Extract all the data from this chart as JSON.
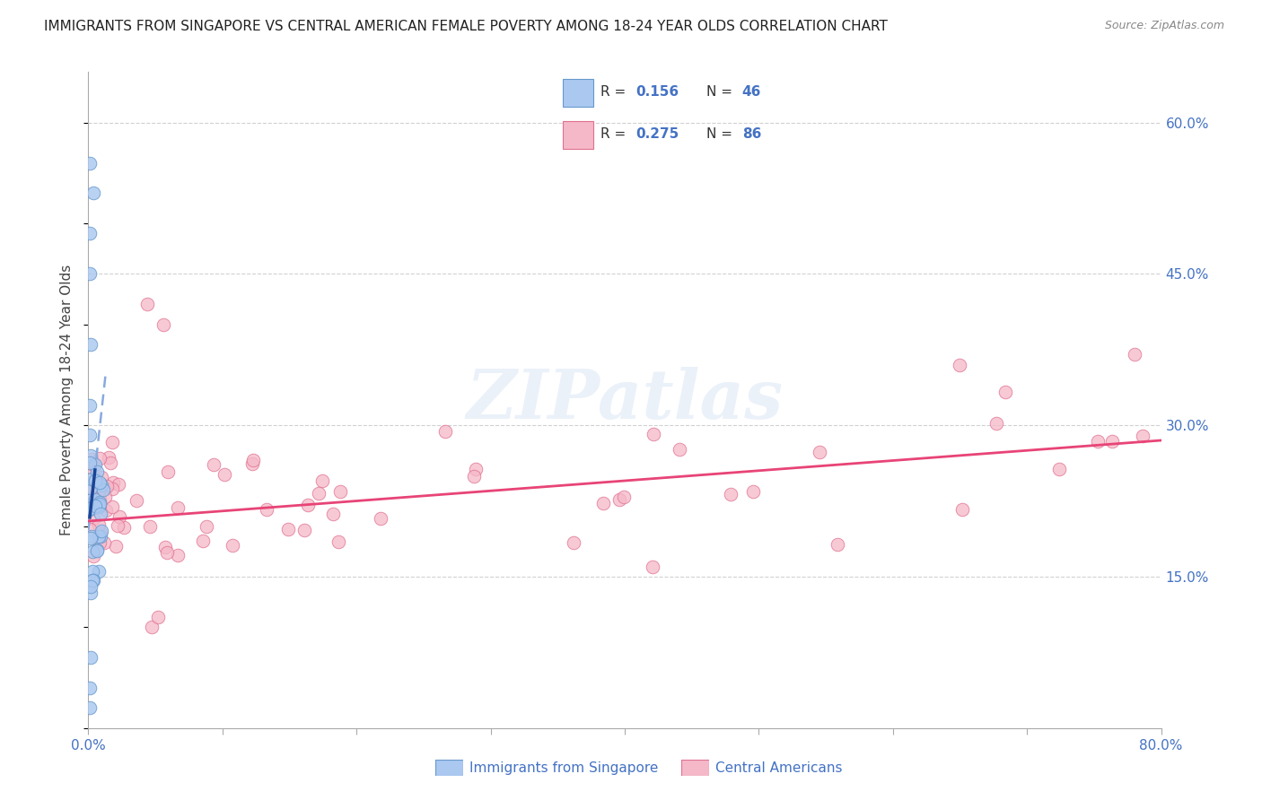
{
  "title": "IMMIGRANTS FROM SINGAPORE VS CENTRAL AMERICAN FEMALE POVERTY AMONG 18-24 YEAR OLDS CORRELATION CHART",
  "source": "Source: ZipAtlas.com",
  "ylabel": "Female Poverty Among 18-24 Year Olds",
  "ytick_labels": [
    "15.0%",
    "30.0%",
    "45.0%",
    "60.0%"
  ],
  "ytick_values": [
    0.15,
    0.3,
    0.45,
    0.6
  ],
  "xlim": [
    0.0,
    0.8
  ],
  "ylim": [
    0.0,
    0.65
  ],
  "title_color": "#222222",
  "source_color": "#888888",
  "ylabel_color": "#444444",
  "ytick_color": "#4472c4",
  "xtick_color": "#4472c4",
  "grid_color": "#cccccc",
  "background_color": "#ffffff",
  "singapore_scatter_color": "#aac8f0",
  "singapore_scatter_edgecolor": "#6699cc",
  "singapore_line_color": "#1a4494",
  "singapore_line_dashed_color": "#88aadd",
  "central_scatter_color": "#f5b8c8",
  "central_scatter_edgecolor": "#e07090",
  "central_line_color": "#e84477",
  "R_singapore": 0.156,
  "N_singapore": 46,
  "R_central": 0.275,
  "N_central": 86,
  "sg_seed": 42,
  "ca_seed": 99,
  "watermark_color": "#c8d8f0",
  "watermark_alpha": 0.35
}
